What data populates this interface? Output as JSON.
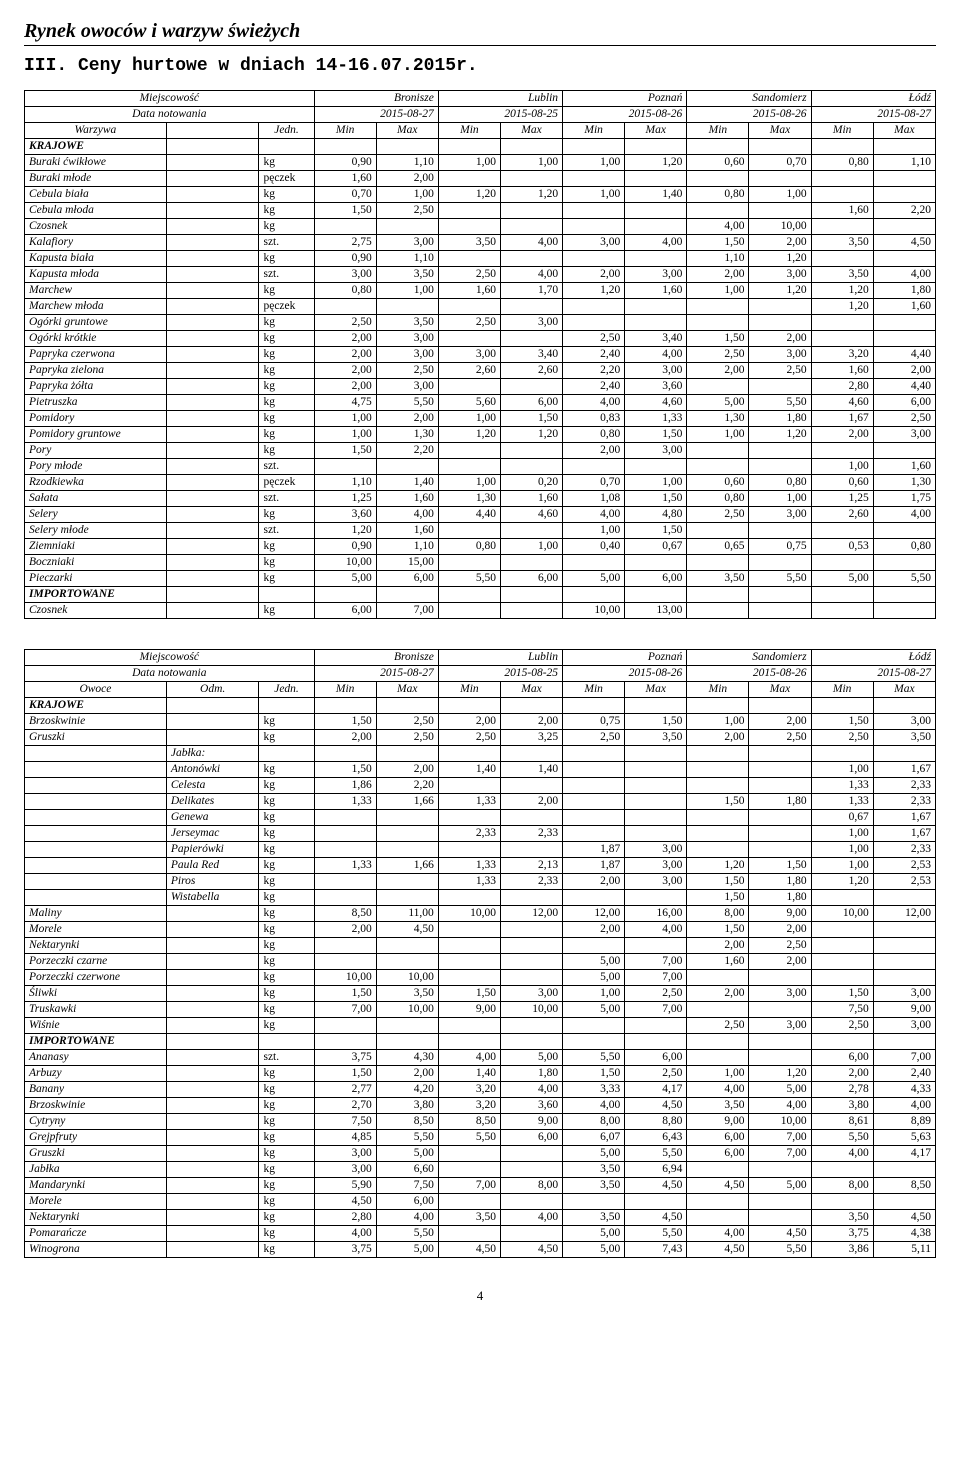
{
  "page_title": "Rynek owoców i warzyw świeżych",
  "section_title": "III. Ceny hurtowe w dniach 14-16.07.2015r.",
  "page_number": "4",
  "header_labels": {
    "miejscowosc": "Miejscowość",
    "data_notowania": "Data notowania",
    "warzywa": "Warzywa",
    "owoce": "Owoce",
    "odm": "Odm.",
    "jedn": "Jedn.",
    "min": "Min",
    "max": "Max"
  },
  "cities": [
    "Bronisze",
    "Lublin",
    "Poznań",
    "Sandomierz",
    "Łódź"
  ],
  "dates": [
    "2015-08-27",
    "2015-08-25",
    "2015-08-26",
    "2015-08-26",
    "2015-08-27"
  ],
  "section_labels": {
    "krajowe": "KRAJOWE",
    "importowane": "IMPORTOWANE",
    "jablka": "Jabłka:"
  },
  "tableA": [
    {
      "section": "KRAJOWE"
    },
    {
      "name": "Buraki ćwikłowe",
      "jedn": "kg",
      "v": [
        "0,90",
        "1,10",
        "1,00",
        "1,00",
        "1,00",
        "1,20",
        "0,60",
        "0,70",
        "0,80",
        "1,10"
      ]
    },
    {
      "name": "Buraki młode",
      "jedn": "pęczek",
      "v": [
        "1,60",
        "2,00",
        "",
        "",
        "",
        "",
        "",
        "",
        "",
        ""
      ]
    },
    {
      "name": "Cebula biała",
      "jedn": "kg",
      "v": [
        "0,70",
        "1,00",
        "1,20",
        "1,20",
        "1,00",
        "1,40",
        "0,80",
        "1,00",
        "",
        ""
      ]
    },
    {
      "name": "Cebula młoda",
      "jedn": "kg",
      "v": [
        "1,50",
        "2,50",
        "",
        "",
        "",
        "",
        "",
        "",
        "1,60",
        "2,20"
      ]
    },
    {
      "name": "Czosnek",
      "jedn": "kg",
      "v": [
        "",
        "",
        "",
        "",
        "",
        "",
        "4,00",
        "10,00",
        "",
        ""
      ]
    },
    {
      "name": "Kalafiory",
      "jedn": "szt.",
      "v": [
        "2,75",
        "3,00",
        "3,50",
        "4,00",
        "3,00",
        "4,00",
        "1,50",
        "2,00",
        "3,50",
        "4,50"
      ]
    },
    {
      "name": "Kapusta biała",
      "jedn": "kg",
      "v": [
        "0,90",
        "1,10",
        "",
        "",
        "",
        "",
        "1,10",
        "1,20",
        "",
        ""
      ]
    },
    {
      "name": "Kapusta młoda",
      "jedn": "szt.",
      "v": [
        "3,00",
        "3,50",
        "2,50",
        "4,00",
        "2,00",
        "3,00",
        "2,00",
        "3,00",
        "3,50",
        "4,00"
      ]
    },
    {
      "name": "Marchew",
      "jedn": "kg",
      "v": [
        "0,80",
        "1,00",
        "1,60",
        "1,70",
        "1,20",
        "1,60",
        "1,00",
        "1,20",
        "1,20",
        "1,80"
      ]
    },
    {
      "name": "Marchew młoda",
      "jedn": "pęczek",
      "v": [
        "",
        "",
        "",
        "",
        "",
        "",
        "",
        "",
        "1,20",
        "1,60"
      ]
    },
    {
      "name": "Ogórki gruntowe",
      "jedn": "kg",
      "v": [
        "2,50",
        "3,50",
        "2,50",
        "3,00",
        "",
        "",
        "",
        "",
        "",
        ""
      ]
    },
    {
      "name": "Ogórki krótkie",
      "jedn": "kg",
      "v": [
        "2,00",
        "3,00",
        "",
        "",
        "2,50",
        "3,40",
        "1,50",
        "2,00",
        "",
        ""
      ]
    },
    {
      "name": "Papryka czerwona",
      "jedn": "kg",
      "v": [
        "2,00",
        "3,00",
        "3,00",
        "3,40",
        "2,40",
        "4,00",
        "2,50",
        "3,00",
        "3,20",
        "4,40"
      ]
    },
    {
      "name": "Papryka zielona",
      "jedn": "kg",
      "v": [
        "2,00",
        "2,50",
        "2,60",
        "2,60",
        "2,20",
        "3,00",
        "2,00",
        "2,50",
        "1,60",
        "2,00"
      ]
    },
    {
      "name": "Papryka żółta",
      "jedn": "kg",
      "v": [
        "2,00",
        "3,00",
        "",
        "",
        "2,40",
        "3,60",
        "",
        "",
        "2,80",
        "4,40"
      ]
    },
    {
      "name": "Pietruszka",
      "jedn": "kg",
      "v": [
        "4,75",
        "5,50",
        "5,60",
        "6,00",
        "4,00",
        "4,60",
        "5,00",
        "5,50",
        "4,60",
        "6,00"
      ]
    },
    {
      "name": "Pomidory",
      "jedn": "kg",
      "v": [
        "1,00",
        "2,00",
        "1,00",
        "1,50",
        "0,83",
        "1,33",
        "1,30",
        "1,80",
        "1,67",
        "2,50"
      ]
    },
    {
      "name": "Pomidory gruntowe",
      "jedn": "kg",
      "v": [
        "1,00",
        "1,30",
        "1,20",
        "1,20",
        "0,80",
        "1,50",
        "1,00",
        "1,20",
        "2,00",
        "3,00"
      ]
    },
    {
      "name": "Pory",
      "jedn": "kg",
      "v": [
        "1,50",
        "2,20",
        "",
        "",
        "2,00",
        "3,00",
        "",
        "",
        "",
        ""
      ]
    },
    {
      "name": "Pory młode",
      "jedn": "szt.",
      "v": [
        "",
        "",
        "",
        "",
        "",
        "",
        "",
        "",
        "1,00",
        "1,60"
      ]
    },
    {
      "name": "Rzodkiewka",
      "jedn": "pęczek",
      "v": [
        "1,10",
        "1,40",
        "1,00",
        "0,20",
        "0,70",
        "1,00",
        "0,60",
        "0,80",
        "0,60",
        "1,30"
      ]
    },
    {
      "name": "Sałata",
      "jedn": "szt.",
      "v": [
        "1,25",
        "1,60",
        "1,30",
        "1,60",
        "1,08",
        "1,50",
        "0,80",
        "1,00",
        "1,25",
        "1,75"
      ]
    },
    {
      "name": "Selery",
      "jedn": "kg",
      "v": [
        "3,60",
        "4,00",
        "4,40",
        "4,60",
        "4,00",
        "4,80",
        "2,50",
        "3,00",
        "2,60",
        "4,00"
      ]
    },
    {
      "name": "Selery młode",
      "jedn": "szt.",
      "v": [
        "1,20",
        "1,60",
        "",
        "",
        "1,00",
        "1,50",
        "",
        "",
        "",
        ""
      ]
    },
    {
      "name": "Ziemniaki",
      "jedn": "kg",
      "v": [
        "0,90",
        "1,10",
        "0,80",
        "1,00",
        "0,40",
        "0,67",
        "0,65",
        "0,75",
        "0,53",
        "0,80"
      ]
    },
    {
      "name": "Boczniaki",
      "jedn": "kg",
      "v": [
        "10,00",
        "15,00",
        "",
        "",
        "",
        "",
        "",
        "",
        "",
        ""
      ]
    },
    {
      "name": "Pieczarki",
      "jedn": "kg",
      "v": [
        "5,00",
        "6,00",
        "5,50",
        "6,00",
        "5,00",
        "6,00",
        "3,50",
        "5,50",
        "5,00",
        "5,50"
      ]
    },
    {
      "section": "IMPORTOWANE"
    },
    {
      "name": "Czosnek",
      "jedn": "kg",
      "v": [
        "6,00",
        "7,00",
        "",
        "",
        "10,00",
        "13,00",
        "",
        "",
        "",
        ""
      ]
    }
  ],
  "tableB": [
    {
      "section": "KRAJOWE"
    },
    {
      "name": "Brzoskwinie",
      "odm": "",
      "jedn": "kg",
      "v": [
        "1,50",
        "2,50",
        "2,00",
        "2,00",
        "0,75",
        "1,50",
        "1,00",
        "2,00",
        "1,50",
        "3,00"
      ]
    },
    {
      "name": "Gruszki",
      "odm": "",
      "jedn": "kg",
      "v": [
        "2,00",
        "2,50",
        "2,50",
        "3,25",
        "2,50",
        "3,50",
        "2,00",
        "2,50",
        "2,50",
        "3,50"
      ]
    },
    {
      "jablka": true
    },
    {
      "name": "",
      "odm": "Antonówki",
      "jedn": "kg",
      "v": [
        "1,50",
        "2,00",
        "1,40",
        "1,40",
        "",
        "",
        "",
        "",
        "1,00",
        "1,67"
      ]
    },
    {
      "name": "",
      "odm": "Celesta",
      "jedn": "kg",
      "v": [
        "1,86",
        "2,20",
        "",
        "",
        "",
        "",
        "",
        "",
        "1,33",
        "2,33"
      ]
    },
    {
      "name": "",
      "odm": "Delikates",
      "jedn": "kg",
      "v": [
        "1,33",
        "1,66",
        "1,33",
        "2,00",
        "",
        "",
        "1,50",
        "1,80",
        "1,33",
        "2,33"
      ]
    },
    {
      "name": "",
      "odm": "Genewa",
      "jedn": "kg",
      "v": [
        "",
        "",
        "",
        "",
        "",
        "",
        "",
        "",
        "0,67",
        "1,67"
      ]
    },
    {
      "name": "",
      "odm": "Jerseymac",
      "jedn": "kg",
      "v": [
        "",
        "",
        "2,33",
        "2,33",
        "",
        "",
        "",
        "",
        "1,00",
        "1,67"
      ]
    },
    {
      "name": "",
      "odm": "Papierówki",
      "jedn": "kg",
      "v": [
        "",
        "",
        "",
        "",
        "1,87",
        "3,00",
        "",
        "",
        "1,00",
        "2,33"
      ]
    },
    {
      "name": "",
      "odm": "Paula Red",
      "jedn": "kg",
      "v": [
        "1,33",
        "1,66",
        "1,33",
        "2,13",
        "1,87",
        "3,00",
        "1,20",
        "1,50",
        "1,00",
        "2,53"
      ]
    },
    {
      "name": "",
      "odm": "Piros",
      "jedn": "kg",
      "v": [
        "",
        "",
        "1,33",
        "2,33",
        "2,00",
        "3,00",
        "1,50",
        "1,80",
        "1,20",
        "2,53"
      ]
    },
    {
      "name": "",
      "odm": "Wistabella",
      "jedn": "kg",
      "v": [
        "",
        "",
        "",
        "",
        "",
        "",
        "1,50",
        "1,80",
        "",
        ""
      ]
    },
    {
      "name": "Maliny",
      "odm": "",
      "jedn": "kg",
      "v": [
        "8,50",
        "11,00",
        "10,00",
        "12,00",
        "12,00",
        "16,00",
        "8,00",
        "9,00",
        "10,00",
        "12,00"
      ]
    },
    {
      "name": "Morele",
      "odm": "",
      "jedn": "kg",
      "v": [
        "2,00",
        "4,50",
        "",
        "",
        "2,00",
        "4,00",
        "1,50",
        "2,00",
        "",
        ""
      ]
    },
    {
      "name": "Nektarynki",
      "odm": "",
      "jedn": "kg",
      "v": [
        "",
        "",
        "",
        "",
        "",
        "",
        "2,00",
        "2,50",
        "",
        ""
      ]
    },
    {
      "name": "Porzeczki czarne",
      "odm": "",
      "jedn": "kg",
      "v": [
        "",
        "",
        "",
        "",
        "5,00",
        "7,00",
        "1,60",
        "2,00",
        "",
        ""
      ]
    },
    {
      "name": "Porzeczki czerwone",
      "odm": "",
      "jedn": "kg",
      "v": [
        "10,00",
        "10,00",
        "",
        "",
        "5,00",
        "7,00",
        "",
        "",
        "",
        ""
      ]
    },
    {
      "name": "Śliwki",
      "odm": "",
      "jedn": "kg",
      "v": [
        "1,50",
        "3,50",
        "1,50",
        "3,00",
        "1,00",
        "2,50",
        "2,00",
        "3,00",
        "1,50",
        "3,00"
      ]
    },
    {
      "name": "Truskawki",
      "odm": "",
      "jedn": "kg",
      "v": [
        "7,00",
        "10,00",
        "9,00",
        "10,00",
        "5,00",
        "7,00",
        "",
        "",
        "7,50",
        "9,00"
      ]
    },
    {
      "name": "Wiśnie",
      "odm": "",
      "jedn": "kg",
      "v": [
        "",
        "",
        "",
        "",
        "",
        "",
        "2,50",
        "3,00",
        "2,50",
        "3,00"
      ]
    },
    {
      "section": "IMPORTOWANE"
    },
    {
      "name": "Ananasy",
      "odm": "",
      "jedn": "szt.",
      "v": [
        "3,75",
        "4,30",
        "4,00",
        "5,00",
        "5,50",
        "6,00",
        "",
        "",
        "6,00",
        "7,00"
      ]
    },
    {
      "name": "Arbuzy",
      "odm": "",
      "jedn": "kg",
      "v": [
        "1,50",
        "2,00",
        "1,40",
        "1,80",
        "1,50",
        "2,50",
        "1,00",
        "1,20",
        "2,00",
        "2,40"
      ]
    },
    {
      "name": "Banany",
      "odm": "",
      "jedn": "kg",
      "v": [
        "2,77",
        "4,20",
        "3,20",
        "4,00",
        "3,33",
        "4,17",
        "4,00",
        "5,00",
        "2,78",
        "4,33"
      ]
    },
    {
      "name": "Brzoskwinie",
      "odm": "",
      "jedn": "kg",
      "v": [
        "2,70",
        "3,80",
        "3,20",
        "3,60",
        "4,00",
        "4,50",
        "3,50",
        "4,00",
        "3,80",
        "4,00"
      ]
    },
    {
      "name": "Cytryny",
      "odm": "",
      "jedn": "kg",
      "v": [
        "7,50",
        "8,50",
        "8,50",
        "9,00",
        "8,00",
        "8,80",
        "9,00",
        "10,00",
        "8,61",
        "8,89"
      ]
    },
    {
      "name": "Grejpfruty",
      "odm": "",
      "jedn": "kg",
      "v": [
        "4,85",
        "5,50",
        "5,50",
        "6,00",
        "6,07",
        "6,43",
        "6,00",
        "7,00",
        "5,50",
        "5,63"
      ]
    },
    {
      "name": "Gruszki",
      "odm": "",
      "jedn": "kg",
      "v": [
        "3,00",
        "5,00",
        "",
        "",
        "5,00",
        "5,50",
        "6,00",
        "7,00",
        "4,00",
        "4,17"
      ]
    },
    {
      "name": "Jabłka",
      "odm": "",
      "jedn": "kg",
      "v": [
        "3,00",
        "6,60",
        "",
        "",
        "3,50",
        "6,94",
        "",
        "",
        "",
        ""
      ]
    },
    {
      "name": "Mandarynki",
      "odm": "",
      "jedn": "kg",
      "v": [
        "5,90",
        "7,50",
        "7,00",
        "8,00",
        "3,50",
        "4,50",
        "4,50",
        "5,00",
        "8,00",
        "8,50"
      ]
    },
    {
      "name": "Morele",
      "odm": "",
      "jedn": "kg",
      "v": [
        "4,50",
        "6,00",
        "",
        "",
        "",
        "",
        "",
        "",
        "",
        ""
      ]
    },
    {
      "name": "Nektarynki",
      "odm": "",
      "jedn": "kg",
      "v": [
        "2,80",
        "4,00",
        "3,50",
        "4,00",
        "3,50",
        "4,50",
        "",
        "",
        "3,50",
        "4,50"
      ]
    },
    {
      "name": "Pomarańcze",
      "odm": "",
      "jedn": "kg",
      "v": [
        "4,00",
        "5,50",
        "",
        "",
        "5,00",
        "5,50",
        "4,00",
        "4,50",
        "3,75",
        "4,38"
      ]
    },
    {
      "name": "Winogrona",
      "odm": "",
      "jedn": "kg",
      "v": [
        "3,75",
        "5,00",
        "4,50",
        "4,50",
        "5,00",
        "7,43",
        "4,50",
        "5,50",
        "3,86",
        "5,11"
      ]
    }
  ]
}
